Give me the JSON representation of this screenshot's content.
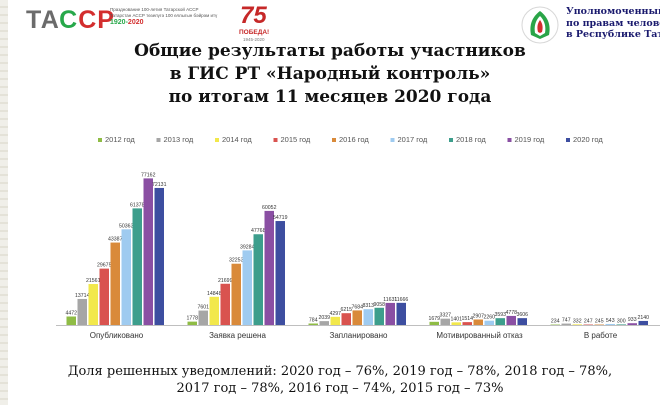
{
  "header": {
    "logo_text": "ТАССР",
    "anniversary_text": "Празднование 100-летия Татарской АССР\nТатарстан АССР төзелүгә 100 еллыгын бәйрәм итү",
    "anniversary_years": [
      "1920",
      "2020"
    ],
    "pobeda_number": "75",
    "pobeda_word": "ПОБЕДА!",
    "pobeda_years": "1945-2020",
    "ombudsman": [
      "Уполномоченный",
      "по правам человека",
      "в Республике Татар"
    ]
  },
  "title_lines": [
    "Общие результаты работы участников",
    "в ГИС РТ «Народный контроль»",
    "по итогам 11 месяцев 2020 года"
  ],
  "footer_lines": [
    "Доля решенных уведомлений: 2020 год – 76%, 2019 год – 78%, 2018 год – 78%,",
    "2017 год – 78%, 2016 год – 74%, 2015 год – 73%"
  ],
  "colors": {
    "series": [
      "#8fbc45",
      "#a6a6a6",
      "#f2e84b",
      "#d9534f",
      "#d98a3a",
      "#9fcbf0",
      "#3d9e8c",
      "#8a4fa3",
      "#3d4ea0"
    ]
  },
  "chart_data": {
    "type": "bar",
    "categories": [
      "Опубликовано",
      "Заявка решена",
      "Запланировано",
      "Мотивированный отказ",
      "В работе"
    ],
    "series": [
      {
        "name": "2012 год",
        "values": [
          4472,
          1778,
          784,
          1679,
          234
        ]
      },
      {
        "name": "2013 год",
        "values": [
          13714,
          7601,
          2039,
          3327,
          747
        ]
      },
      {
        "name": "2014 год",
        "values": [
          21561,
          14848,
          4297,
          1401,
          332
        ]
      },
      {
        "name": "2015 год",
        "values": [
          29675,
          21699,
          6215,
          1514,
          247
        ]
      },
      {
        "name": "2016 год",
        "values": [
          43387,
          32253,
          7684,
          2907,
          245
        ]
      },
      {
        "name": "2017 год",
        "values": [
          50363,
          39284,
          8313,
          2260,
          543
        ]
      },
      {
        "name": "2018 год",
        "values": [
          61378,
          47768,
          9058,
          3593,
          300
        ]
      },
      {
        "name": "2019 год",
        "values": [
          77162,
          60052,
          11631,
          4778,
          933
        ]
      },
      {
        "name": "2020 год",
        "values": [
          72131,
          54719,
          11666,
          3606,
          2140
        ]
      }
    ],
    "ylim": [
      0,
      80000
    ],
    "legend": "top",
    "grid": false
  }
}
